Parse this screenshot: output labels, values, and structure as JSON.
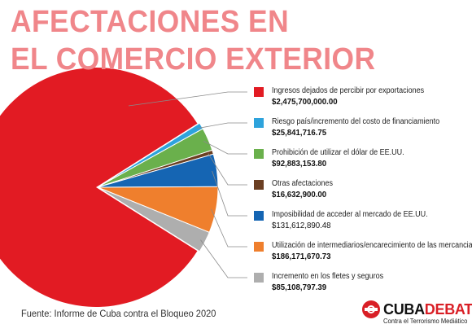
{
  "title": {
    "line1": "AFECTACIONES EN",
    "line2": "EL COMERCIO EXTERIOR"
  },
  "colors": {
    "title": "#f0868a",
    "brand_red": "#d91f26"
  },
  "chart_data": {
    "type": "pie",
    "title": "AFECTACIONES EN EL COMERCIO EXTERIOR",
    "slices": [
      {
        "label": "Ingresos dejados de percibir por exportaciones",
        "value": 2475700000.0,
        "value_text": "$2,475,700,000.00",
        "color": "#e21b23"
      },
      {
        "label": "Riesgo país/incremento del costo de financiamiento",
        "value": 25841716.75,
        "value_text": "$25,841,716.75",
        "color": "#2ea3dc"
      },
      {
        "label": "Prohibición de utilizar el dólar de EE.UU.",
        "value": 92883153.8,
        "value_text": "$92,883,153.80",
        "color": "#6ab04c"
      },
      {
        "label": "Otras afectaciones",
        "value": 16632900.0,
        "value_text": "$16,632,900.00",
        "color": "#6b3f22"
      },
      {
        "label": "Imposibilidad de acceder al mercado de EE.UU.",
        "value": 131612890.48,
        "value_text": "$131,612,890.48",
        "color": "#1565b3"
      },
      {
        "label": "Utilización de intermediarios/encarecimiento de las mercancias",
        "value": 186171670.73,
        "value_text": "$186,171,670.73",
        "color": "#ef7f2d"
      },
      {
        "label": "Incremento en los fletes y seguros",
        "value": 85108797.39,
        "value_text": "$85,108,797.39",
        "color": "#aeaeae"
      }
    ],
    "legend_placement": "right"
  },
  "source": "Fuente: Informe de Cuba contra el Bloqueo 2020",
  "brand": {
    "name_part1": "CUBA",
    "name_part2": "DEBATE",
    "tagline": "Contra el Terrorismo Mediático"
  }
}
